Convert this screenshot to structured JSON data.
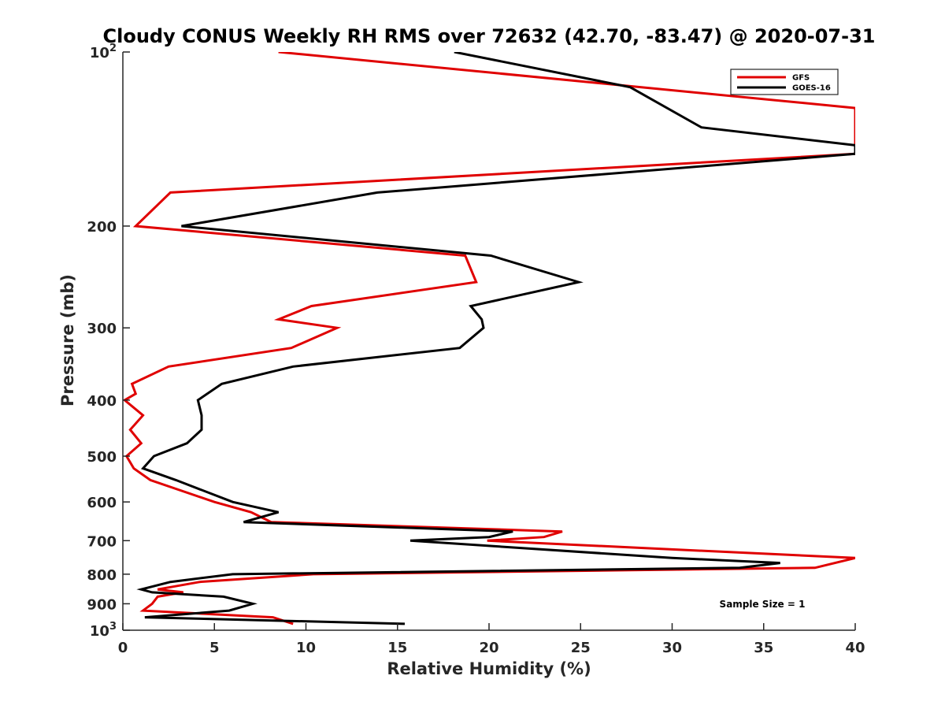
{
  "chart_data": {
    "type": "line",
    "title": "Cloudy CONUS Weekly RH RMS over 72632 (42.70, -83.47) @ 2020-07-31",
    "xlabel": "Relative Humidity (%)",
    "ylabel": "Pressure (mb)",
    "xlim": [
      0,
      40
    ],
    "ylim": [
      100,
      1000
    ],
    "yscale": "log",
    "y_reversed": true,
    "grid": false,
    "legend_position": "top-right",
    "x_ticks": [
      "0",
      "5",
      "10",
      "15",
      "20",
      "25",
      "30",
      "35",
      "40"
    ],
    "y_ticks": [
      {
        "value": 100,
        "base": "10",
        "exp": "2"
      },
      {
        "value": 200,
        "label": "200"
      },
      {
        "value": 300,
        "label": "300"
      },
      {
        "value": 400,
        "label": "400"
      },
      {
        "value": 500,
        "label": "500"
      },
      {
        "value": 600,
        "label": "600"
      },
      {
        "value": 700,
        "label": "700"
      },
      {
        "value": 800,
        "label": "800"
      },
      {
        "value": 900,
        "label": "900"
      },
      {
        "value": 1000,
        "base": "10",
        "exp": "3"
      }
    ],
    "annotation": "Sample Size = 1",
    "series": [
      {
        "name": "GFS",
        "color": "#e00000",
        "points": [
          [
            8.5,
            100
          ],
          [
            40,
            125
          ],
          [
            40,
            150
          ],
          [
            2.6,
            175
          ],
          [
            0.7,
            200
          ],
          [
            18.7,
            225
          ],
          [
            19.3,
            250
          ],
          [
            10.3,
            275
          ],
          [
            8.5,
            290
          ],
          [
            11.7,
            300
          ],
          [
            9.2,
            325
          ],
          [
            2.5,
            350
          ],
          [
            0.5,
            375
          ],
          [
            0.7,
            390
          ],
          [
            0.1,
            400
          ],
          [
            1.1,
            425
          ],
          [
            0.4,
            450
          ],
          [
            1.0,
            475
          ],
          [
            0.2,
            500
          ],
          [
            0.6,
            525
          ],
          [
            1.5,
            550
          ],
          [
            5.0,
            600
          ],
          [
            7.0,
            625
          ],
          [
            8.1,
            650
          ],
          [
            24.0,
            675
          ],
          [
            23.0,
            690
          ],
          [
            19.9,
            700
          ],
          [
            40,
            750
          ],
          [
            37.8,
            780
          ],
          [
            10.4,
            800
          ],
          [
            4.2,
            825
          ],
          [
            1.9,
            850
          ],
          [
            3.3,
            860
          ],
          [
            1.9,
            875
          ],
          [
            1.6,
            900
          ],
          [
            1.1,
            925
          ],
          [
            8.2,
            950
          ],
          [
            9.3,
            975
          ]
        ]
      },
      {
        "name": "GOES-16",
        "color": "#000000",
        "points": [
          [
            18.1,
            100
          ],
          [
            27.7,
            115
          ],
          [
            31.6,
            135
          ],
          [
            40,
            145
          ],
          [
            40,
            150
          ],
          [
            13.9,
            175
          ],
          [
            3.2,
            200
          ],
          [
            20.1,
            225
          ],
          [
            24.9,
            250
          ],
          [
            19.0,
            275
          ],
          [
            19.6,
            290
          ],
          [
            19.7,
            300
          ],
          [
            18.4,
            325
          ],
          [
            9.3,
            350
          ],
          [
            5.4,
            375
          ],
          [
            4.1,
            400
          ],
          [
            4.3,
            425
          ],
          [
            4.3,
            450
          ],
          [
            3.5,
            475
          ],
          [
            1.7,
            500
          ],
          [
            1.1,
            525
          ],
          [
            2.9,
            550
          ],
          [
            6.0,
            600
          ],
          [
            8.5,
            625
          ],
          [
            6.6,
            650
          ],
          [
            21.3,
            675
          ],
          [
            20.0,
            690
          ],
          [
            15.7,
            700
          ],
          [
            30.0,
            750
          ],
          [
            35.9,
            765
          ],
          [
            33.7,
            780
          ],
          [
            6.0,
            800
          ],
          [
            2.6,
            825
          ],
          [
            1.0,
            850
          ],
          [
            1.6,
            860
          ],
          [
            5.5,
            875
          ],
          [
            7.1,
            900
          ],
          [
            5.8,
            925
          ],
          [
            1.2,
            950
          ],
          [
            15.4,
            975
          ]
        ]
      }
    ]
  }
}
